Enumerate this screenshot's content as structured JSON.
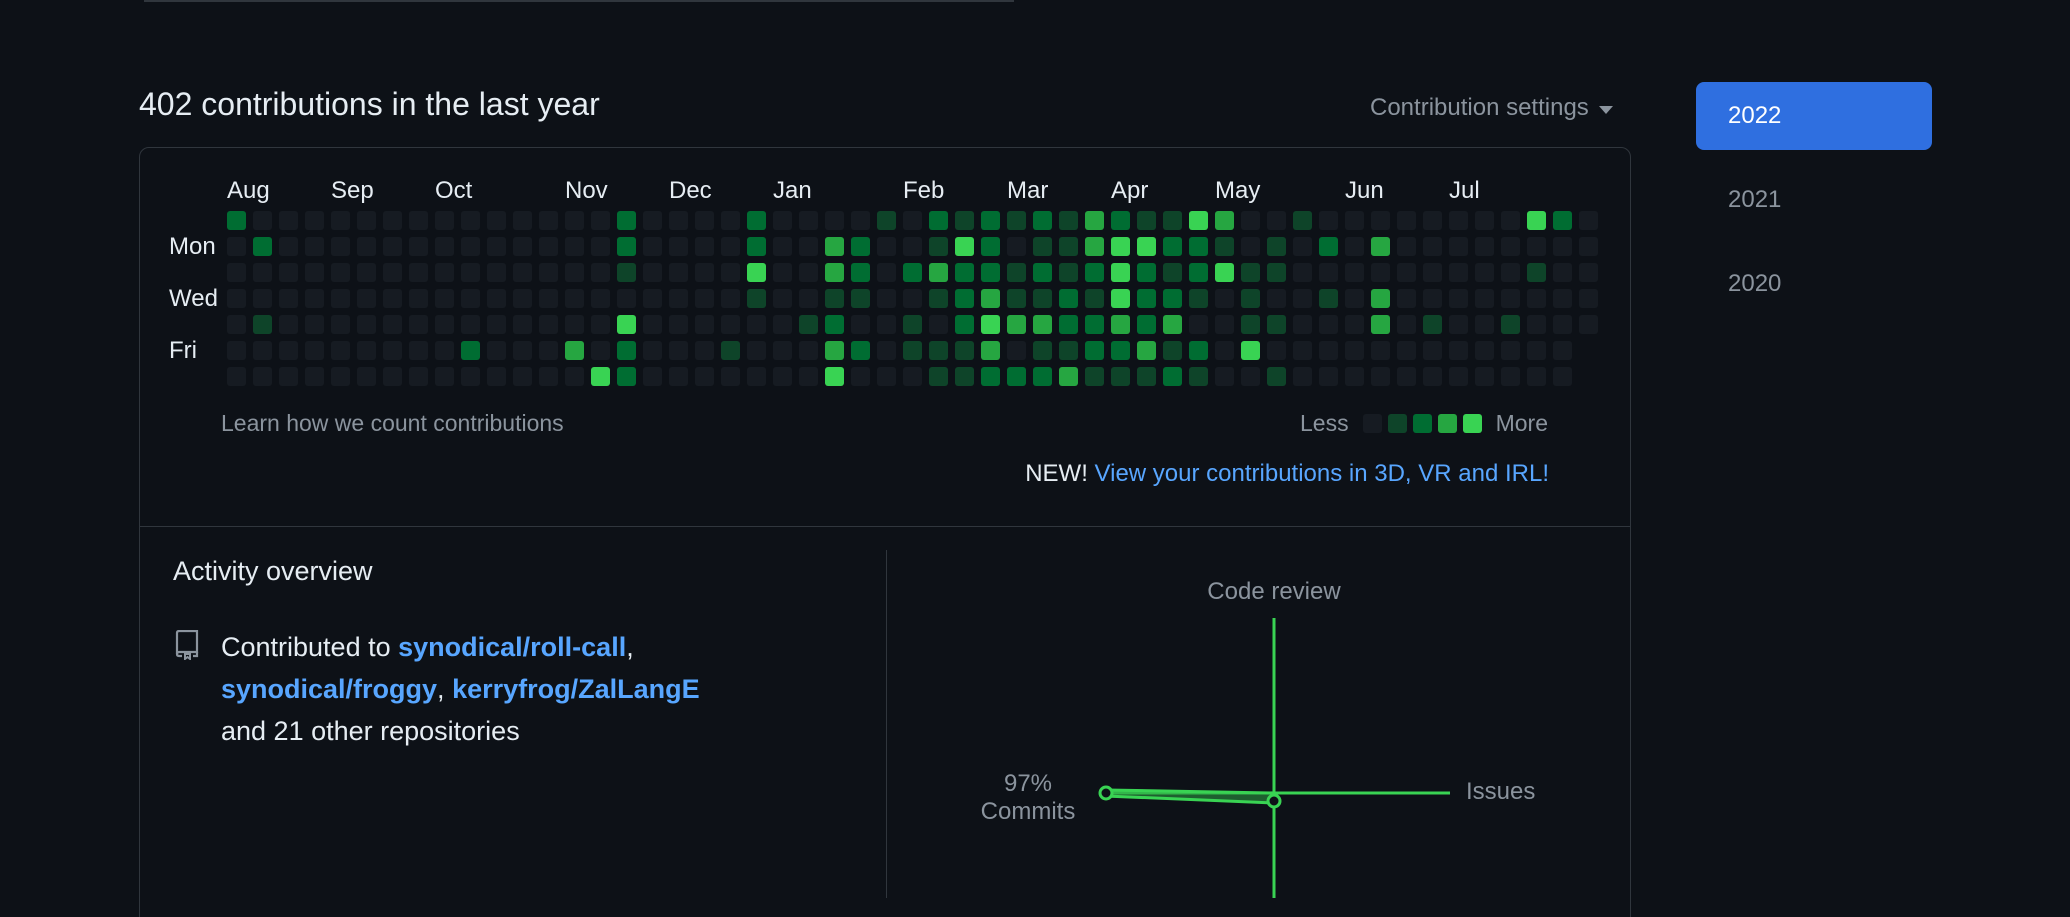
{
  "header": {
    "title": "402 contributions in the last year",
    "settings_label": "Contribution settings"
  },
  "calendar": {
    "months": [
      {
        "label": "Aug",
        "col": 0
      },
      {
        "label": "Sep",
        "col": 4
      },
      {
        "label": "Oct",
        "col": 8
      },
      {
        "label": "Nov",
        "col": 13
      },
      {
        "label": "Dec",
        "col": 17
      },
      {
        "label": "Jan",
        "col": 21
      },
      {
        "label": "Feb",
        "col": 26
      },
      {
        "label": "Mar",
        "col": 30
      },
      {
        "label": "Apr",
        "col": 34
      },
      {
        "label": "May",
        "col": 38
      },
      {
        "label": "Jun",
        "col": 43
      },
      {
        "label": "Jul",
        "col": 47
      }
    ],
    "day_labels": [
      {
        "label": "Mon",
        "row": 1
      },
      {
        "label": "Wed",
        "row": 3
      },
      {
        "label": "Fri",
        "row": 5
      }
    ],
    "weeks": 53,
    "level_colors": [
      "#161b22",
      "#0e4429",
      "#006d32",
      "#26a641",
      "#39d353"
    ],
    "cells": [
      [
        0,
        0,
        2
      ],
      [
        1,
        1,
        2
      ],
      [
        1,
        4,
        1
      ],
      [
        9,
        5,
        2
      ],
      [
        13,
        5,
        3
      ],
      [
        14,
        6,
        4
      ],
      [
        15,
        0,
        2
      ],
      [
        15,
        1,
        2
      ],
      [
        15,
        2,
        1
      ],
      [
        15,
        4,
        4
      ],
      [
        15,
        5,
        2
      ],
      [
        15,
        6,
        2
      ],
      [
        19,
        5,
        1
      ],
      [
        20,
        0,
        2
      ],
      [
        20,
        1,
        2
      ],
      [
        20,
        2,
        4
      ],
      [
        20,
        3,
        1
      ],
      [
        22,
        4,
        1
      ],
      [
        23,
        1,
        3
      ],
      [
        23,
        2,
        3
      ],
      [
        23,
        3,
        1
      ],
      [
        23,
        4,
        2
      ],
      [
        23,
        5,
        3
      ],
      [
        23,
        6,
        4
      ],
      [
        24,
        1,
        2
      ],
      [
        24,
        2,
        2
      ],
      [
        24,
        3,
        1
      ],
      [
        24,
        5,
        2
      ],
      [
        25,
        0,
        1
      ],
      [
        26,
        2,
        2
      ],
      [
        26,
        4,
        1
      ],
      [
        26,
        5,
        1
      ],
      [
        27,
        0,
        2
      ],
      [
        27,
        1,
        1
      ],
      [
        27,
        2,
        3
      ],
      [
        27,
        3,
        1
      ],
      [
        27,
        5,
        1
      ],
      [
        27,
        6,
        1
      ],
      [
        28,
        0,
        1
      ],
      [
        28,
        1,
        4
      ],
      [
        28,
        2,
        2
      ],
      [
        28,
        3,
        2
      ],
      [
        28,
        4,
        2
      ],
      [
        28,
        5,
        1
      ],
      [
        28,
        6,
        1
      ],
      [
        29,
        0,
        2
      ],
      [
        29,
        1,
        2
      ],
      [
        29,
        2,
        2
      ],
      [
        29,
        3,
        3
      ],
      [
        29,
        4,
        4
      ],
      [
        29,
        5,
        3
      ],
      [
        29,
        6,
        2
      ],
      [
        30,
        0,
        1
      ],
      [
        30,
        2,
        1
      ],
      [
        30,
        3,
        1
      ],
      [
        30,
        4,
        3
      ],
      [
        30,
        6,
        2
      ],
      [
        31,
        0,
        2
      ],
      [
        31,
        1,
        1
      ],
      [
        31,
        2,
        2
      ],
      [
        31,
        3,
        1
      ],
      [
        31,
        4,
        3
      ],
      [
        31,
        5,
        1
      ],
      [
        31,
        6,
        2
      ],
      [
        32,
        0,
        1
      ],
      [
        32,
        1,
        1
      ],
      [
        32,
        2,
        1
      ],
      [
        32,
        3,
        2
      ],
      [
        32,
        4,
        2
      ],
      [
        32,
        5,
        1
      ],
      [
        32,
        6,
        3
      ],
      [
        33,
        0,
        3
      ],
      [
        33,
        1,
        3
      ],
      [
        33,
        2,
        2
      ],
      [
        33,
        3,
        1
      ],
      [
        33,
        4,
        2
      ],
      [
        33,
        5,
        2
      ],
      [
        33,
        6,
        1
      ],
      [
        34,
        0,
        2
      ],
      [
        34,
        1,
        4
      ],
      [
        34,
        2,
        4
      ],
      [
        34,
        3,
        4
      ],
      [
        34,
        4,
        3
      ],
      [
        34,
        5,
        2
      ],
      [
        34,
        6,
        1
      ],
      [
        35,
        0,
        1
      ],
      [
        35,
        1,
        4
      ],
      [
        35,
        2,
        2
      ],
      [
        35,
        3,
        2
      ],
      [
        35,
        4,
        2
      ],
      [
        35,
        5,
        3
      ],
      [
        35,
        6,
        1
      ],
      [
        36,
        0,
        1
      ],
      [
        36,
        1,
        2
      ],
      [
        36,
        2,
        1
      ],
      [
        36,
        3,
        2
      ],
      [
        36,
        4,
        3
      ],
      [
        36,
        5,
        1
      ],
      [
        36,
        6,
        2
      ],
      [
        37,
        0,
        4
      ],
      [
        37,
        1,
        2
      ],
      [
        37,
        2,
        2
      ],
      [
        37,
        3,
        1
      ],
      [
        37,
        5,
        2
      ],
      [
        37,
        6,
        1
      ],
      [
        38,
        0,
        3
      ],
      [
        38,
        1,
        1
      ],
      [
        38,
        2,
        4
      ],
      [
        39,
        2,
        1
      ],
      [
        39,
        3,
        1
      ],
      [
        39,
        4,
        1
      ],
      [
        39,
        5,
        4
      ],
      [
        40,
        1,
        1
      ],
      [
        40,
        2,
        1
      ],
      [
        40,
        4,
        1
      ],
      [
        40,
        6,
        1
      ],
      [
        41,
        0,
        1
      ],
      [
        42,
        1,
        2
      ],
      [
        42,
        3,
        1
      ],
      [
        44,
        1,
        3
      ],
      [
        44,
        3,
        3
      ],
      [
        44,
        4,
        3
      ],
      [
        46,
        4,
        1
      ],
      [
        49,
        4,
        1
      ],
      [
        50,
        0,
        4
      ],
      [
        50,
        2,
        1
      ],
      [
        51,
        0,
        2
      ]
    ]
  },
  "footer": {
    "learn_link": "Learn how we count contributions",
    "legend_less": "Less",
    "legend_more": "More",
    "new_prefix": "NEW!",
    "new_link": "View your contributions in 3D, VR and IRL!"
  },
  "activity": {
    "title": "Activity overview",
    "contributed_prefix": "Contributed to",
    "repos": [
      "synodical/roll-call",
      "synodical/froggy",
      "kerryfrog/ZalLangE"
    ],
    "sep1": ",",
    "sep2": ",",
    "suffix": "and 21 other repositories",
    "radar": {
      "top_label": "Code review",
      "left_pct": "97%",
      "left_label": "Commits",
      "right_label": "Issues"
    }
  },
  "years": [
    {
      "label": "2022",
      "active": true
    },
    {
      "label": "2021",
      "active": false
    },
    {
      "label": "2020",
      "active": false
    }
  ]
}
